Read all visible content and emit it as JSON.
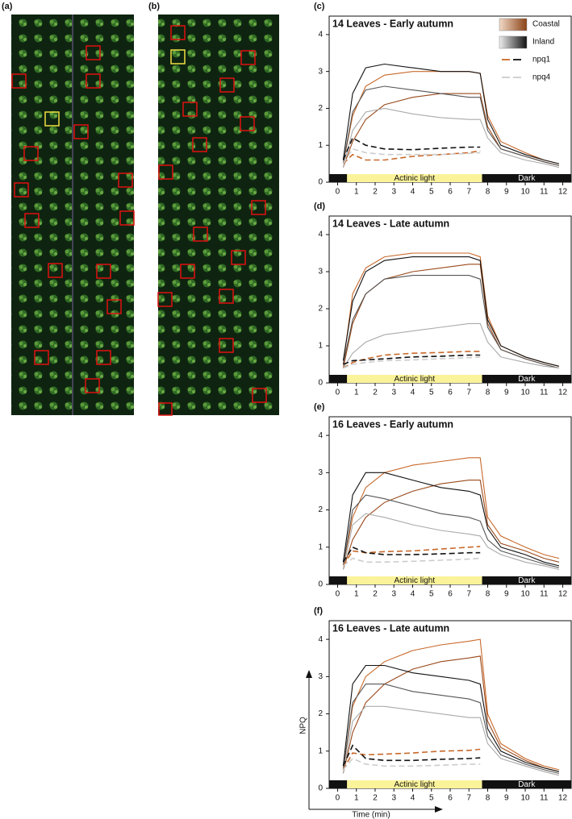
{
  "photo_panels": [
    {
      "label": "(a)"
    },
    {
      "label": "(b)"
    }
  ],
  "chart_data": [
    {
      "type": "line",
      "label": "(c)",
      "title": "14 Leaves - Early autumn",
      "x": [
        0.3,
        0.8,
        1.5,
        2.5,
        4,
        5.5,
        7,
        7.6,
        8,
        8.7,
        10,
        11,
        11.8
      ],
      "xlim": [
        -0.45,
        12.45
      ],
      "xticks": [
        0,
        1,
        2,
        3,
        4,
        5,
        6,
        7,
        8,
        9,
        10,
        11,
        12
      ],
      "ylim": [
        0,
        4.5
      ],
      "yticks": [
        0,
        1,
        2,
        3,
        4
      ],
      "legend": "top-right",
      "light": {
        "label": "Actinic light",
        "start": 0.5,
        "end": 7.7,
        "dark_label": "Dark"
      },
      "series": [
        {
          "name": "Coastal",
          "colors": [
            "#c8692a",
            "#9a4a1c"
          ],
          "dashed": false,
          "values": [
            [
              0.5,
              1.8,
              2.6,
              2.9,
              3.0,
              3.0,
              3.0,
              2.95,
              1.8,
              1.1,
              0.8,
              0.6,
              0.5
            ],
            [
              0.4,
              1.1,
              1.7,
              2.1,
              2.3,
              2.4,
              2.4,
              2.4,
              1.5,
              0.9,
              0.7,
              0.55,
              0.45
            ]
          ]
        },
        {
          "name": "Inland",
          "colors": [
            "#111111",
            "#555555",
            "#aaaaaa"
          ],
          "dashed": false,
          "values": [
            [
              0.6,
              2.4,
              3.1,
              3.2,
              3.1,
              3.0,
              3.0,
              2.95,
              1.7,
              1.0,
              0.75,
              0.6,
              0.5
            ],
            [
              0.5,
              1.9,
              2.5,
              2.6,
              2.5,
              2.4,
              2.3,
              2.3,
              1.4,
              0.9,
              0.7,
              0.55,
              0.45
            ],
            [
              0.4,
              1.4,
              1.9,
              2.0,
              1.85,
              1.75,
              1.7,
              1.7,
              1.2,
              0.8,
              0.6,
              0.5,
              0.4
            ]
          ]
        },
        {
          "name": "npq1",
          "colors": [
            "#c8692a",
            "#111111"
          ],
          "dashed": true,
          "values": [
            [
              0.5,
              0.75,
              0.6,
              0.6,
              0.7,
              0.75,
              0.8,
              0.85,
              null,
              null,
              null,
              null,
              null
            ],
            [
              0.6,
              1.2,
              1.0,
              0.9,
              0.88,
              0.92,
              0.95,
              0.95,
              null,
              null,
              null,
              null,
              null
            ]
          ]
        },
        {
          "name": "npq4",
          "colors": [
            "#cccccc"
          ],
          "dashed": true,
          "values": [
            [
              0.5,
              0.9,
              0.8,
              0.75,
              0.75,
              0.75,
              0.78,
              0.8,
              null,
              null,
              null,
              null,
              null
            ]
          ]
        }
      ]
    },
    {
      "type": "line",
      "label": "(d)",
      "title": "14 Leaves - Late autumn",
      "x": [
        0.3,
        0.8,
        1.5,
        2.5,
        4,
        5.5,
        7,
        7.6,
        8,
        8.7,
        10,
        11,
        11.8
      ],
      "xlim": [
        -0.45,
        12.45
      ],
      "xticks": [
        0,
        1,
        2,
        3,
        4,
        5,
        6,
        7,
        8,
        9,
        10,
        11,
        12
      ],
      "ylim": [
        0,
        4.5
      ],
      "yticks": [
        0,
        1,
        2,
        3,
        4
      ],
      "light": {
        "label": "Actinic light",
        "start": 0.5,
        "end": 7.7,
        "dark_label": "Dark"
      },
      "series": [
        {
          "colors": [
            "#c8692a",
            "#9a4a1c"
          ],
          "dashed": false,
          "values": [
            [
              0.5,
              2.4,
              3.1,
              3.4,
              3.5,
              3.5,
              3.5,
              3.4,
              1.8,
              1.0,
              0.7,
              0.55,
              0.45
            ],
            [
              0.4,
              1.6,
              2.4,
              2.8,
              3.0,
              3.1,
              3.2,
              3.2,
              1.6,
              0.9,
              0.65,
              0.5,
              0.4
            ]
          ]
        },
        {
          "colors": [
            "#111111",
            "#555555",
            "#aaaaaa"
          ],
          "dashed": false,
          "values": [
            [
              0.6,
              2.2,
              3.0,
              3.3,
              3.4,
              3.4,
              3.4,
              3.3,
              1.7,
              1.0,
              0.7,
              0.55,
              0.45
            ],
            [
              0.5,
              1.7,
              2.4,
              2.8,
              2.9,
              2.9,
              2.9,
              2.8,
              1.5,
              0.9,
              0.65,
              0.5,
              0.4
            ],
            [
              0.4,
              0.8,
              1.1,
              1.3,
              1.4,
              1.5,
              1.6,
              1.6,
              1.1,
              0.7,
              0.55,
              0.45,
              0.4
            ]
          ]
        },
        {
          "colors": [
            "#c8692a",
            "#111111"
          ],
          "dashed": true,
          "values": [
            [
              0.4,
              0.55,
              0.65,
              0.75,
              0.8,
              0.82,
              0.85,
              0.85,
              null,
              null,
              null,
              null,
              null
            ],
            [
              0.5,
              0.6,
              0.62,
              0.65,
              0.7,
              0.72,
              0.75,
              0.75,
              null,
              null,
              null,
              null,
              null
            ]
          ]
        },
        {
          "colors": [
            "#cccccc"
          ],
          "dashed": true,
          "values": [
            [
              0.4,
              0.5,
              0.55,
              0.6,
              0.62,
              0.65,
              0.68,
              0.7,
              null,
              null,
              null,
              null,
              null
            ]
          ]
        }
      ]
    },
    {
      "type": "line",
      "label": "(e)",
      "title": "16 Leaves - Early autumn",
      "x": [
        0.3,
        0.8,
        1.5,
        2.5,
        4,
        5.5,
        7,
        7.6,
        8,
        8.7,
        10,
        11,
        11.8
      ],
      "xlim": [
        -0.45,
        12.45
      ],
      "xticks": [
        0,
        1,
        2,
        3,
        4,
        5,
        6,
        7,
        8,
        9,
        10,
        11,
        12
      ],
      "ylim": [
        0,
        4.5
      ],
      "yticks": [
        0,
        1,
        2,
        3,
        4
      ],
      "light": {
        "label": "Actinic light",
        "start": 0.5,
        "end": 7.7,
        "dark_label": "Dark"
      },
      "series": [
        {
          "colors": [
            "#c8692a",
            "#9a4a1c"
          ],
          "dashed": false,
          "values": [
            [
              0.5,
              1.8,
              2.6,
              3.0,
              3.2,
              3.3,
              3.4,
              3.4,
              1.8,
              1.3,
              1.0,
              0.8,
              0.7
            ],
            [
              0.4,
              1.2,
              1.8,
              2.2,
              2.5,
              2.7,
              2.8,
              2.8,
              1.6,
              1.1,
              0.9,
              0.7,
              0.6
            ]
          ]
        },
        {
          "colors": [
            "#111111",
            "#555555",
            "#aaaaaa"
          ],
          "dashed": false,
          "values": [
            [
              0.6,
              2.4,
              3.0,
              3.0,
              2.8,
              2.6,
              2.5,
              2.4,
              1.5,
              1.0,
              0.8,
              0.6,
              0.5
            ],
            [
              0.5,
              2.0,
              2.4,
              2.3,
              2.1,
              1.9,
              1.8,
              1.7,
              1.2,
              0.9,
              0.7,
              0.55,
              0.45
            ],
            [
              0.4,
              1.6,
              1.9,
              1.8,
              1.6,
              1.45,
              1.35,
              1.3,
              1.0,
              0.8,
              0.6,
              0.5,
              0.4
            ]
          ]
        },
        {
          "colors": [
            "#c8692a",
            "#111111"
          ],
          "dashed": true,
          "values": [
            [
              0.5,
              0.9,
              0.85,
              0.88,
              0.9,
              0.95,
              1.0,
              1.02,
              null,
              null,
              null,
              null,
              null
            ],
            [
              0.6,
              1.0,
              0.85,
              0.8,
              0.8,
              0.82,
              0.85,
              0.85,
              null,
              null,
              null,
              null,
              null
            ]
          ]
        },
        {
          "colors": [
            "#cccccc"
          ],
          "dashed": true,
          "values": [
            [
              0.5,
              0.7,
              0.6,
              0.6,
              0.62,
              0.65,
              0.68,
              0.7,
              null,
              null,
              null,
              null,
              null
            ]
          ]
        }
      ]
    },
    {
      "type": "line",
      "label": "(f)",
      "title": "16 Leaves - Late autumn",
      "x": [
        0.3,
        0.8,
        1.5,
        2.5,
        4,
        5.5,
        7,
        7.6,
        8,
        8.7,
        10,
        11,
        11.8
      ],
      "xlim": [
        -0.45,
        12.45
      ],
      "xticks": [
        0,
        1,
        2,
        3,
        4,
        5,
        6,
        7,
        8,
        9,
        10,
        11,
        12
      ],
      "ylim": [
        0,
        4.5
      ],
      "yticks": [
        0,
        1,
        2,
        3,
        4
      ],
      "xlabel": "Time (min)",
      "ylabel": "NPQ",
      "light": {
        "label": "Actinic light",
        "start": 0.5,
        "end": 7.7,
        "dark_label": "Dark"
      },
      "series": [
        {
          "colors": [
            "#c8692a",
            "#9a4a1c"
          ],
          "dashed": false,
          "values": [
            [
              0.5,
              2.2,
              3.0,
              3.4,
              3.7,
              3.85,
              3.95,
              4.0,
              2.0,
              1.2,
              0.8,
              0.6,
              0.5
            ],
            [
              0.4,
              1.5,
              2.3,
              2.8,
              3.2,
              3.4,
              3.5,
              3.55,
              1.8,
              1.1,
              0.75,
              0.55,
              0.45
            ]
          ]
        },
        {
          "colors": [
            "#111111",
            "#555555",
            "#aaaaaa"
          ],
          "dashed": false,
          "values": [
            [
              0.6,
              2.8,
              3.3,
              3.3,
              3.1,
              3.0,
              2.9,
              2.8,
              1.6,
              1.0,
              0.7,
              0.55,
              0.45
            ],
            [
              0.5,
              2.3,
              2.8,
              2.8,
              2.6,
              2.5,
              2.4,
              2.3,
              1.4,
              0.9,
              0.65,
              0.5,
              0.4
            ],
            [
              0.4,
              1.8,
              2.2,
              2.2,
              2.1,
              2.0,
              1.9,
              1.9,
              1.2,
              0.8,
              0.6,
              0.45,
              0.35
            ]
          ]
        },
        {
          "colors": [
            "#c8692a",
            "#111111"
          ],
          "dashed": true,
          "values": [
            [
              0.5,
              0.95,
              0.9,
              0.92,
              0.95,
              1.0,
              1.02,
              1.05,
              null,
              null,
              null,
              null,
              null
            ],
            [
              0.6,
              1.15,
              0.8,
              0.75,
              0.75,
              0.78,
              0.8,
              0.82,
              null,
              null,
              null,
              null,
              null
            ]
          ]
        },
        {
          "colors": [
            "#cccccc"
          ],
          "dashed": true,
          "values": [
            [
              0.5,
              0.8,
              0.65,
              0.6,
              0.6,
              0.62,
              0.65,
              0.65,
              null,
              null,
              null,
              null,
              null
            ]
          ]
        }
      ]
    }
  ]
}
